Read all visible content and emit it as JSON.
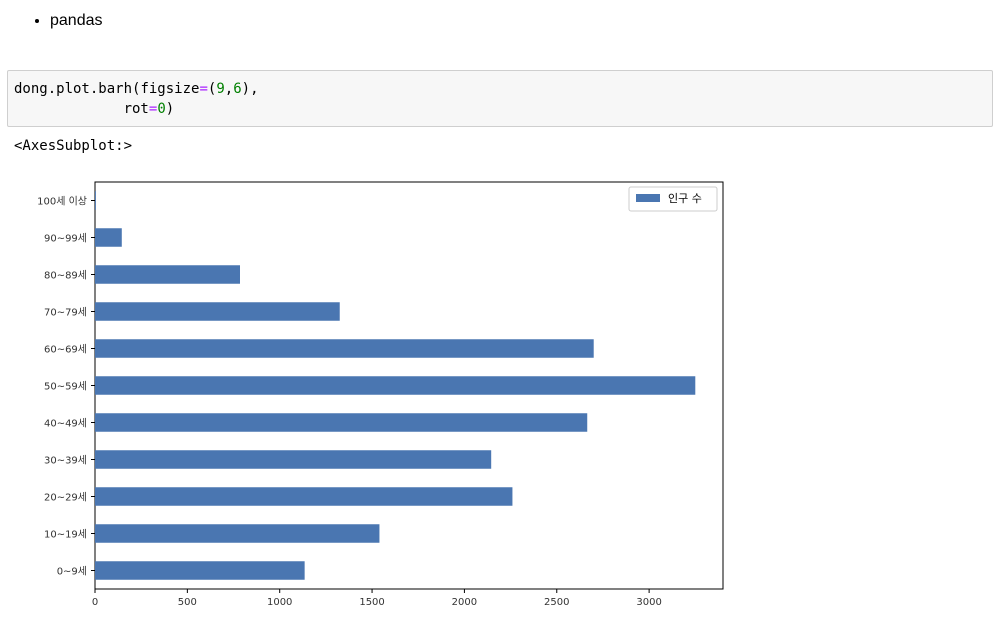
{
  "markdown": {
    "bullet": "pandas"
  },
  "code": {
    "fn": "dong.plot.barh",
    "open": "(",
    "kw1": "figsize",
    "eq": "=",
    "tuple_open": "(",
    "n1": "9",
    "comma": ",",
    "n2": "6",
    "tuple_close": ")",
    "trail": ",",
    "kw2": "rot",
    "n3": "0",
    "close": ")"
  },
  "output": {
    "repr": "<AxesSubplot:>"
  },
  "chart_data": {
    "type": "bar",
    "orientation": "horizontal",
    "categories": [
      "0~9세",
      "10~19세",
      "20~29세",
      "30~39세",
      "40~49세",
      "50~59세",
      "60~69세",
      "70~79세",
      "80~89세",
      "90~99세",
      "100세 이상"
    ],
    "series": [
      {
        "name": "인구 수",
        "values": [
          1135,
          1540,
          2260,
          2145,
          2665,
          3250,
          2700,
          1325,
          785,
          145,
          5
        ]
      }
    ],
    "xticks": [
      0,
      500,
      1000,
      1500,
      2000,
      2500,
      3000
    ],
    "xlim": [
      0,
      3400
    ],
    "legend_position": "top-right",
    "grid": false,
    "bar_color": "#4a76b1"
  }
}
